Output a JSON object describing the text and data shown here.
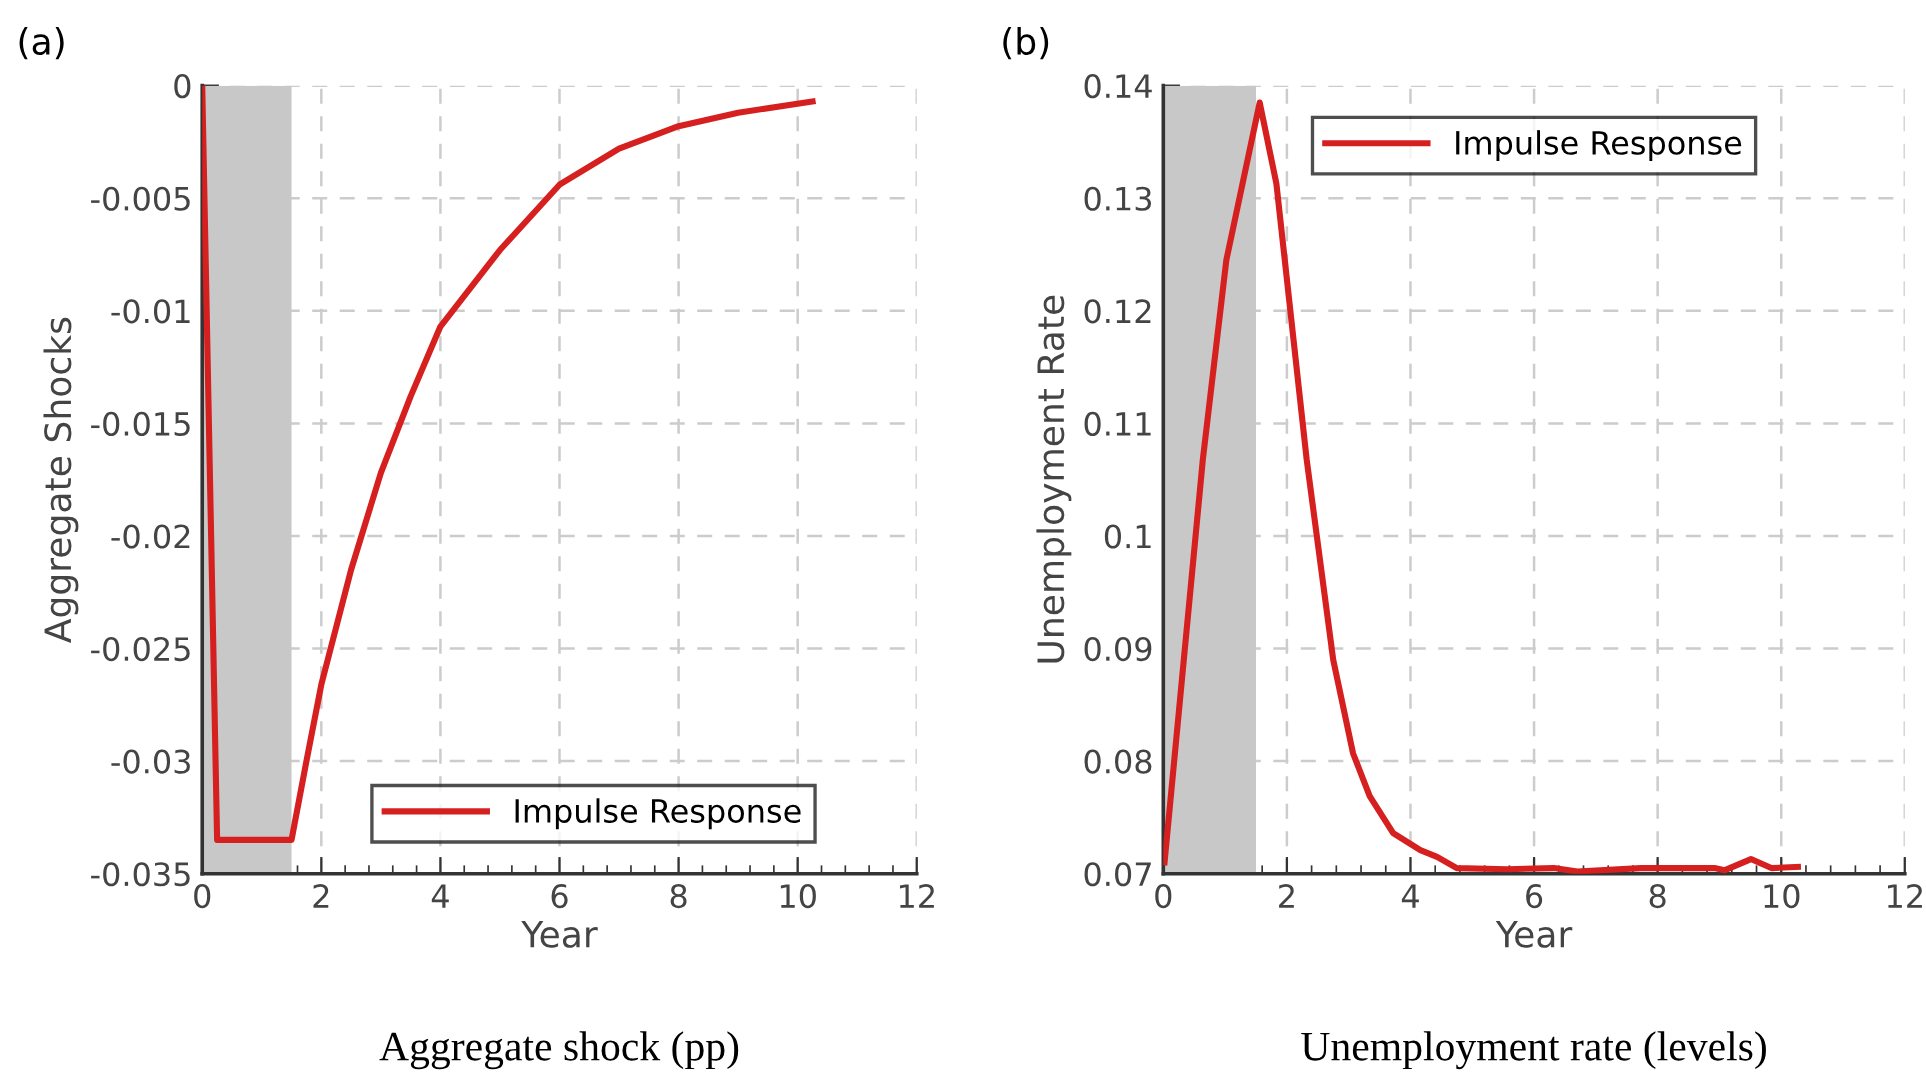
{
  "chart_data": [
    {
      "type": "line",
      "title": "(a)",
      "xlabel": "Year",
      "ylabel": "Aggregate Shocks",
      "annotations": [
        "Aggregate shock (pp)"
      ],
      "series": [
        {
          "name": "Impulse Response",
          "color": "#d62020",
          "x": [
            0,
            0.25,
            1.5,
            1.75,
            2,
            2.5,
            3,
            3.5,
            4,
            5,
            6,
            7,
            8,
            9,
            10.25
          ],
          "values": [
            0,
            -0.0335,
            -0.0335,
            -0.03,
            -0.0266,
            -0.0215,
            -0.0172,
            -0.0138,
            -0.0107,
            -0.0073,
            -0.0044,
            -0.0028,
            -0.0018,
            -0.0012,
            -0.0007
          ]
        }
      ],
      "xlim": [
        0,
        12
      ],
      "ylim": [
        -0.035,
        0
      ],
      "xticks": [
        0,
        2,
        4,
        6,
        8,
        10,
        12
      ],
      "yticks": [
        -0.035,
        -0.03,
        -0.025,
        -0.02,
        -0.015,
        -0.01,
        -0.005,
        0
      ],
      "grid": true,
      "legend": "bottom right",
      "bands": [
        {
          "axis": "x",
          "from": 0,
          "to": 1.5,
          "color": "#c8c8c8"
        }
      ]
    },
    {
      "type": "line",
      "title": "(b)",
      "xlabel": "Year",
      "ylabel": "Unemployment Rate",
      "annotations": [
        "Unemployment rate (levels)"
      ],
      "series": [
        {
          "name": "Impulse Response",
          "color": "#d62020",
          "x": [
            0.02,
            0.64,
            1.02,
            1.56,
            1.83,
            2.32,
            2.75,
            3.07,
            3.34,
            3.72,
            4.16,
            4.43,
            4.75,
            5.56,
            6.32,
            6.7,
            7.73,
            8.92,
            9.08,
            9.51,
            9.84,
            10.27
          ],
          "values": [
            0.071,
            0.1068,
            0.1245,
            0.1385,
            0.1313,
            0.1068,
            0.089,
            0.0807,
            0.0769,
            0.0736,
            0.0721,
            0.0715,
            0.0705,
            0.0704,
            0.0705,
            0.0702,
            0.0705,
            0.0705,
            0.0703,
            0.0713,
            0.0705,
            0.0706
          ]
        }
      ],
      "xlim": [
        0,
        12
      ],
      "ylim": [
        0.07,
        0.14
      ],
      "xticks": [
        0,
        2,
        4,
        6,
        8,
        10,
        12
      ],
      "yticks": [
        0.07,
        0.08,
        0.09,
        0.1,
        0.11,
        0.12,
        0.13,
        0.14
      ],
      "grid": true,
      "legend": "top",
      "bands": [
        {
          "axis": "x",
          "from": 0,
          "to": 1.5,
          "color": "#c8c8c8"
        }
      ]
    }
  ]
}
